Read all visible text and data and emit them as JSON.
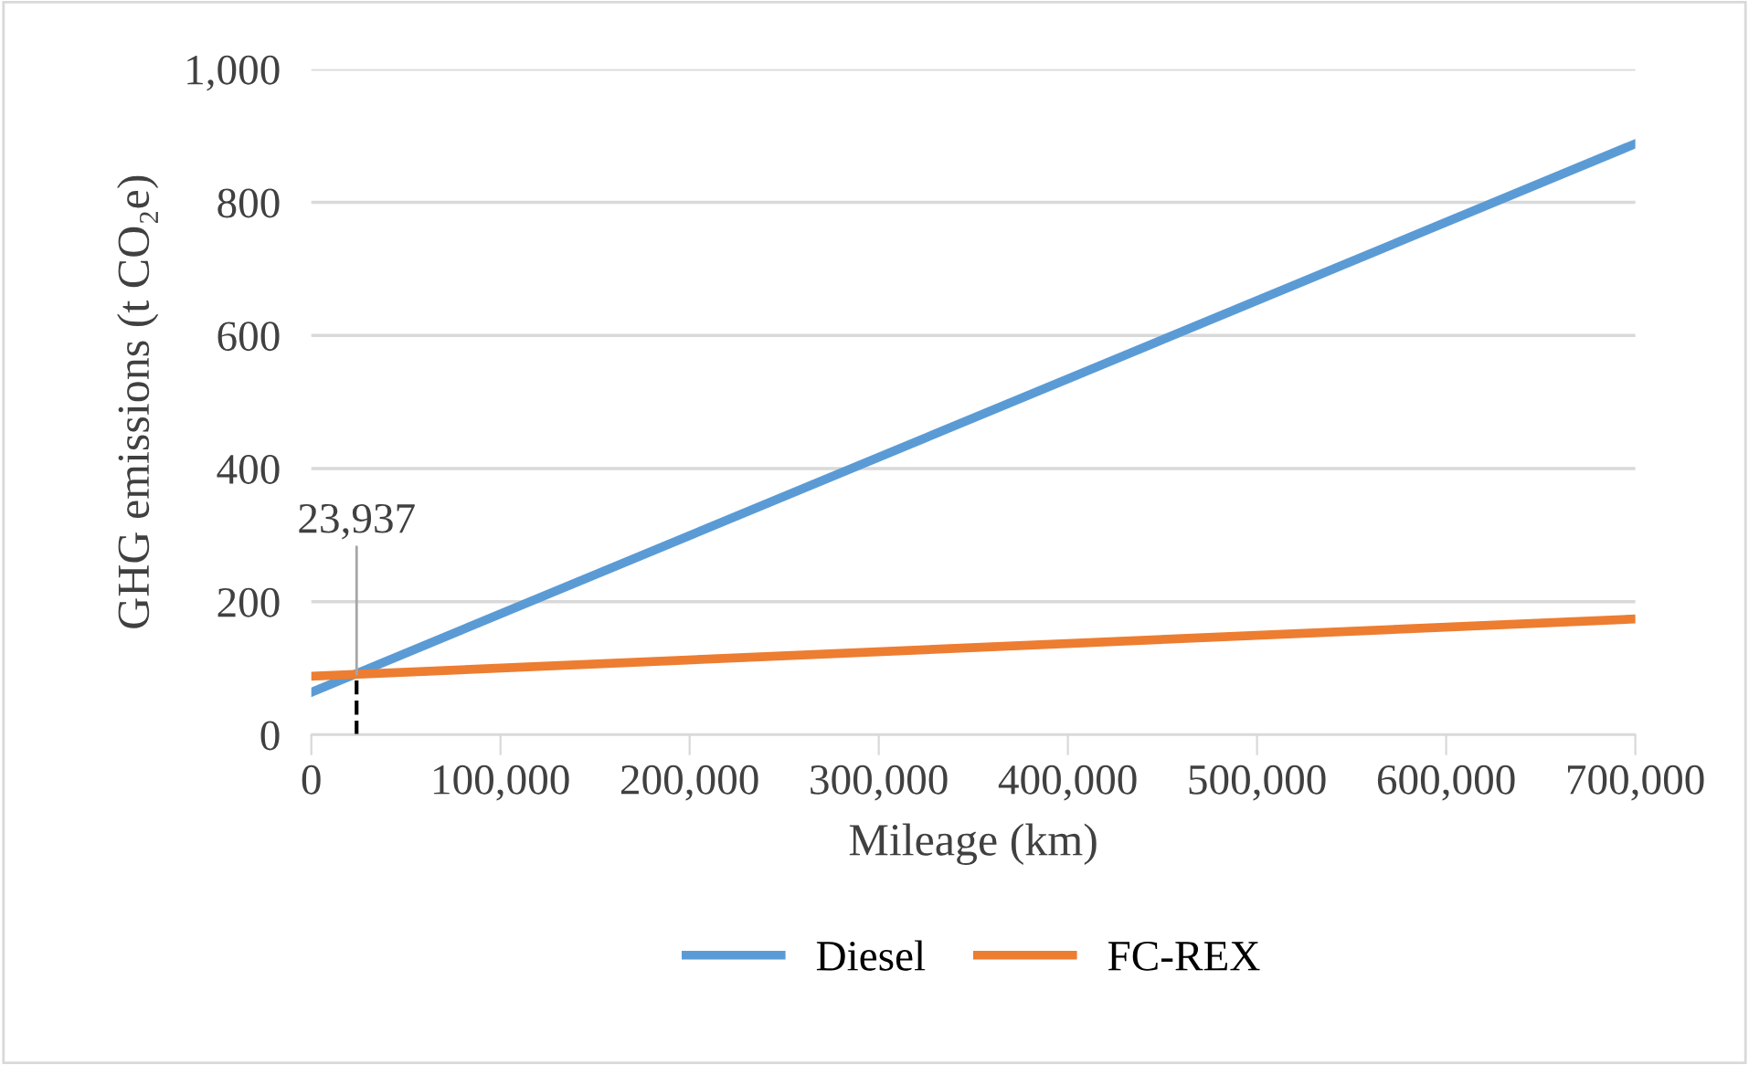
{
  "chart_data": {
    "type": "line",
    "xlabel": "Mileage (km)",
    "ylabel": "GHG emissions (t CO₂e)",
    "x": [
      0,
      700000
    ],
    "series": [
      {
        "name": "Diesel",
        "color": "#5b9bd5",
        "values": [
          64,
          888
        ]
      },
      {
        "name": "FC-REX",
        "color": "#ed7d31",
        "values": [
          88,
          174
        ]
      }
    ],
    "xlim": [
      0,
      700000
    ],
    "xticks": [
      {
        "value": 0,
        "label": "0"
      },
      {
        "value": 100000,
        "label": "100,000"
      },
      {
        "value": 200000,
        "label": "200,000"
      },
      {
        "value": 300000,
        "label": "300,000"
      },
      {
        "value": 400000,
        "label": "400,000"
      },
      {
        "value": 500000,
        "label": "500,000"
      },
      {
        "value": 600000,
        "label": "600,000"
      },
      {
        "value": 700000,
        "label": "700,000"
      }
    ],
    "ylim": [
      0,
      1000
    ],
    "yticks": [
      {
        "value": 0,
        "label": "0"
      },
      {
        "value": 200,
        "label": "200"
      },
      {
        "value": 400,
        "label": "400"
      },
      {
        "value": 600,
        "label": "600"
      },
      {
        "value": 800,
        "label": "800"
      },
      {
        "value": 1000,
        "label": "1,000"
      }
    ],
    "grid": "y",
    "legend": "bottom",
    "line_style": "solid",
    "marker": "none",
    "annotations": [
      {
        "text": "23,937",
        "x": 23937,
        "y": 91
      }
    ],
    "ref_lines": [
      {
        "axis": "x",
        "value": 23937,
        "color": "#000000",
        "line_style": "dashed"
      }
    ]
  }
}
